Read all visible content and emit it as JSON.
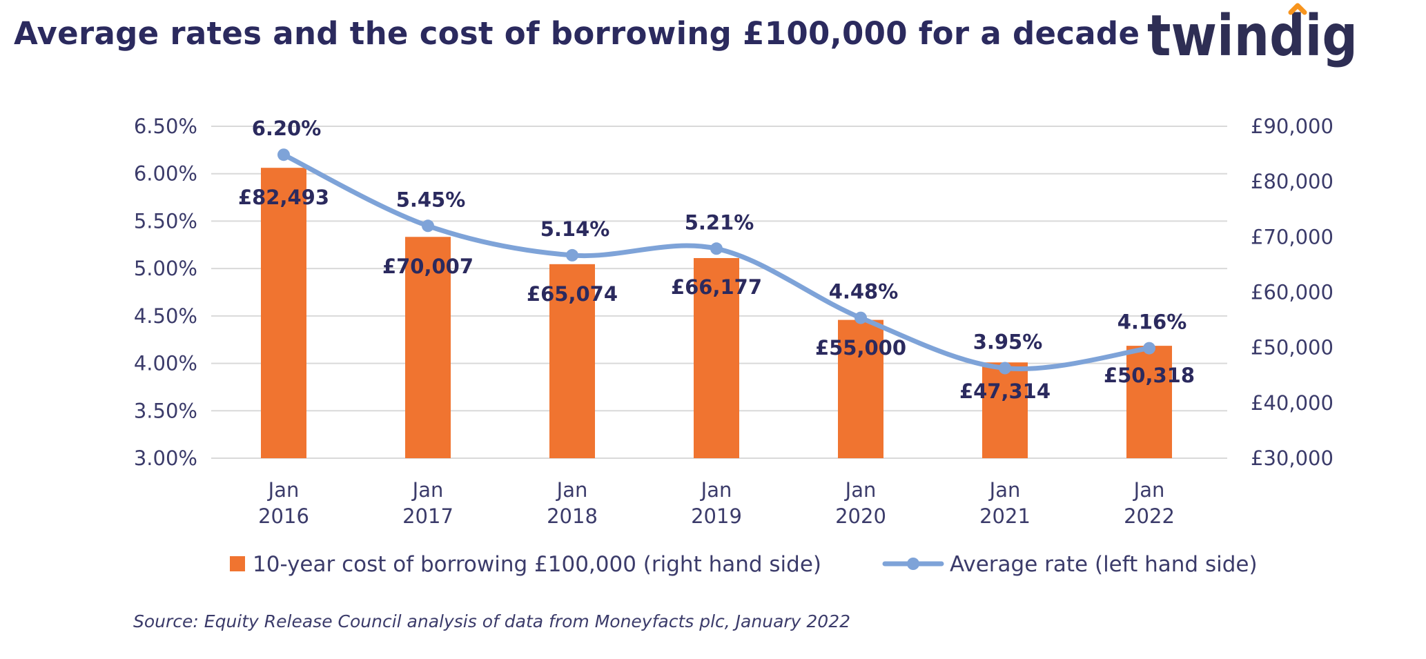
{
  "logo": {
    "text": "twindig",
    "dot_color": "#f7941d",
    "text_color": "#2e2e54"
  },
  "source": "Source: Equity Release Council analysis of data from Moneyfacts plc, January 2022",
  "colors": {
    "bar": "#f07430",
    "line": "#7ea3d8",
    "grid": "#d9d9d9",
    "text": "#3b3b6a",
    "title": "#2b2a5e"
  },
  "chart_data": {
    "type": "bar",
    "title": "Average rates and the cost of borrowing £100,000 for a decade",
    "categories": [
      "Jan 2016",
      "Jan 2017",
      "Jan 2018",
      "Jan 2019",
      "Jan 2020",
      "Jan 2021",
      "Jan 2022"
    ],
    "series": [
      {
        "name": "10-year cost of borrowing £100,000 (right hand side)",
        "kind": "bar",
        "axis": "right",
        "values": [
          82493,
          70007,
          65074,
          66177,
          55000,
          47314,
          50318
        ],
        "labels": [
          "£82,493",
          "£70,007",
          "£65,074",
          "£66,177",
          "£55,000",
          "£47,314",
          "£50,318"
        ]
      },
      {
        "name": "Average rate (left hand side)",
        "kind": "line",
        "axis": "left",
        "values": [
          6.2,
          5.45,
          5.14,
          5.21,
          4.48,
          3.95,
          4.16
        ],
        "labels": [
          "6.20%",
          "5.45%",
          "5.14%",
          "5.21%",
          "4.48%",
          "3.95%",
          "4.16%"
        ]
      }
    ],
    "y_left": {
      "min": 3.0,
      "max": 6.5,
      "ticks": [
        "3.00%",
        "3.50%",
        "4.00%",
        "4.50%",
        "5.00%",
        "5.50%",
        "6.00%",
        "6.50%"
      ]
    },
    "y_right": {
      "min": 30000,
      "max": 90000,
      "ticks": [
        "£30,000",
        "£40,000",
        "£50,000",
        "£60,000",
        "£70,000",
        "£80,000",
        "£90,000"
      ]
    },
    "grid": true,
    "legend_position": "bottom"
  }
}
